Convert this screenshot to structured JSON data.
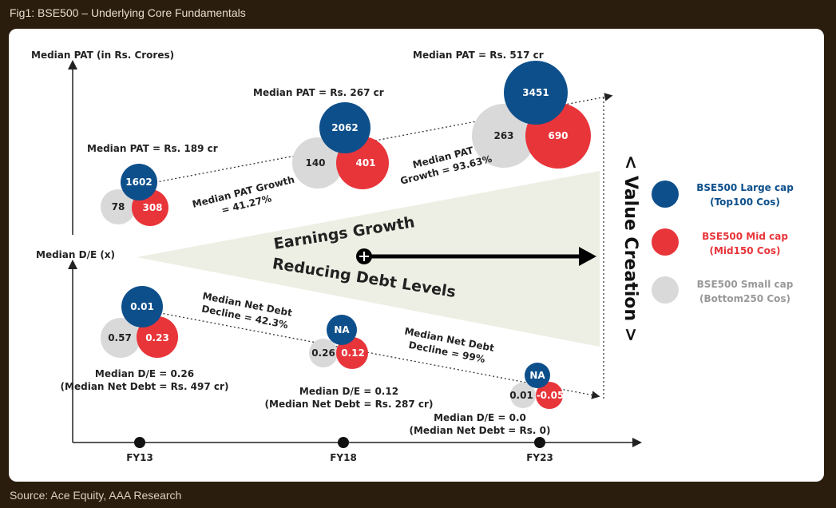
{
  "figure": {
    "title": "Fig1: BSE500 – Underlying Core Fundamentals",
    "source": "Source: Ace Equity, AAA Research"
  },
  "colors": {
    "large": "#0d4f8b",
    "mid": "#e8353a",
    "small": "#d9d9d9",
    "triangle": "#eef0e6"
  },
  "chart_data": {
    "type": "scatter",
    "axes": {
      "y_top_label": "Median PAT (in Rs. Crores)",
      "y_bottom_label": "Median D/E (x)",
      "x_ticks": [
        "FY13",
        "FY18",
        "FY23"
      ]
    },
    "legend": [
      {
        "key": "large",
        "line1": "BSE500 Large cap",
        "line2": "(Top100 Cos)"
      },
      {
        "key": "mid",
        "line1": "BSE500 Mid cap",
        "line2": "(Mid150 Cos)"
      },
      {
        "key": "small",
        "line1": "BSE500 Small cap",
        "line2": "(Bottom250 Cos)"
      }
    ],
    "pat": [
      {
        "year": "FY13",
        "large": "1602",
        "mid": "308",
        "small": "78",
        "median_label": "Median PAT = Rs. 189 cr"
      },
      {
        "year": "FY18",
        "large": "2062",
        "mid": "401",
        "small": "140",
        "median_label": "Median PAT = Rs. 267 cr"
      },
      {
        "year": "FY23",
        "large": "3451",
        "mid": "690",
        "small": "263",
        "median_label": "Median PAT = Rs. 517 cr"
      }
    ],
    "de": [
      {
        "year": "FY13",
        "large": "0.01",
        "mid": "0.23",
        "small": "0.57",
        "median_line1": "Median D/E = 0.26",
        "median_line2": "(Median Net Debt = Rs. 497 cr)"
      },
      {
        "year": "FY18",
        "large": "NA",
        "mid": "0.12",
        "small": "0.26",
        "median_line1": "Median D/E = 0.12",
        "median_line2": "(Median Net Debt = Rs. 287 cr)"
      },
      {
        "year": "FY23",
        "large": "NA",
        "mid": "-0.05",
        "small": "0.01",
        "median_line1": "Median D/E = 0.0",
        "median_line2": "(Median Net Debt = Rs. 0)"
      }
    ],
    "growth_annotations": {
      "pat_1": [
        "Median PAT Growth",
        "= 41.27%"
      ],
      "pat_2": [
        "Median PAT",
        "Growth = 93.63%"
      ],
      "debt_1": [
        "Median Net Debt",
        "Decline = 42.3%"
      ],
      "debt_2": [
        "Median Net Debt",
        "Decline = 99%"
      ]
    },
    "center": {
      "earnings": "Earnings Growth",
      "debt": "Reducing Debt Levels",
      "value_creation": "< Value Creation >"
    }
  }
}
